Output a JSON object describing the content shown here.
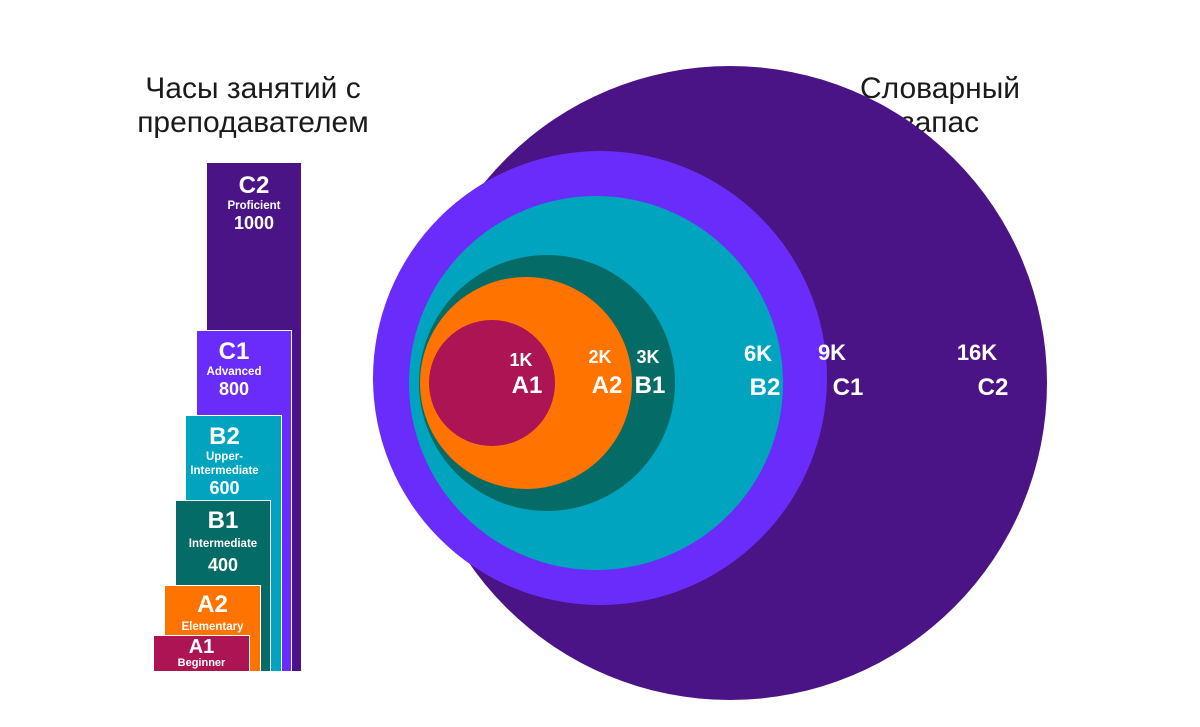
{
  "hours_title": "Часы занятий с преподавателем",
  "vocab_title": "Словарный запас",
  "levels": [
    {
      "level": "C2",
      "name": "Proficient",
      "hours": "1000",
      "vocab": "16K",
      "color": "#4a1486"
    },
    {
      "level": "C1",
      "name": "Advanced",
      "hours": "800",
      "vocab": "9K",
      "color": "#6a2cfa"
    },
    {
      "level": "B2",
      "name": "Upper-Intermediate",
      "hours": "600",
      "vocab": "6K",
      "color": "#00a4bf"
    },
    {
      "level": "B1",
      "name": "Intermediate",
      "hours": "400",
      "vocab": "3K",
      "color": "#056b66"
    },
    {
      "level": "A2",
      "name": "Elementary",
      "hours": "",
      "vocab": "2K",
      "color": "#ff7300"
    },
    {
      "level": "A1",
      "name": "Beginner",
      "hours": "",
      "vocab": "1K",
      "color": "#ac1453"
    }
  ]
}
